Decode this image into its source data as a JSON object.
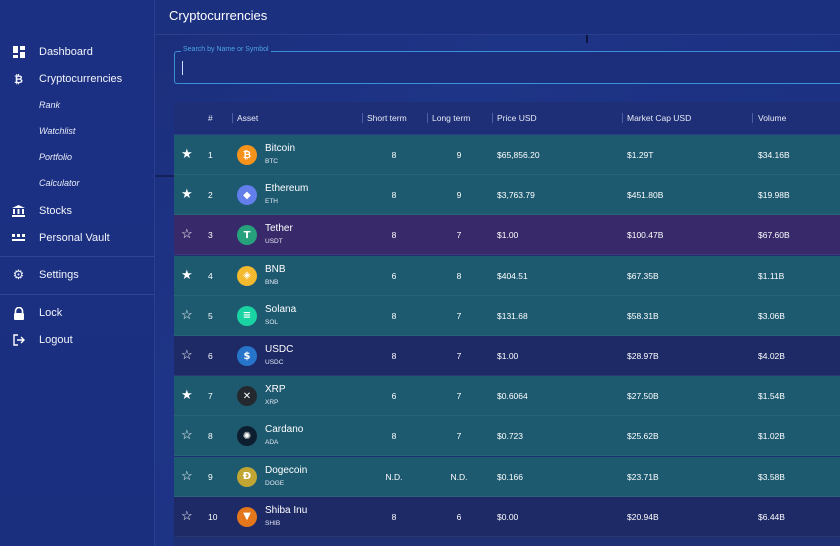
{
  "header": {
    "title": "Cryptocurrencies"
  },
  "sidebar": {
    "items": [
      {
        "label": "Dashboard",
        "icon": "dashboard-icon"
      },
      {
        "label": "Cryptocurrencies",
        "icon": "bitcoin-icon"
      },
      {
        "label": "Stocks",
        "icon": "bank-icon"
      },
      {
        "label": "Personal Vault",
        "icon": "vault-icon"
      },
      {
        "label": "Settings",
        "icon": "gear-icon"
      },
      {
        "label": "Lock",
        "icon": "lock-icon"
      },
      {
        "label": "Logout",
        "icon": "logout-icon"
      }
    ],
    "subitems": [
      "Rank",
      "Watchlist",
      "Portfolio",
      "Calculator"
    ]
  },
  "search": {
    "label": "Search by Name or Symbol",
    "value": ""
  },
  "table": {
    "columns": [
      "#",
      "Asset",
      "Short term",
      "Long term",
      "Price USD",
      "Market Cap USD",
      "Volume"
    ],
    "rows": [
      {
        "starred": true,
        "rank": "1",
        "name": "Bitcoin",
        "symbol": "BTC",
        "short": "8",
        "long": "9",
        "price": "$65,856.20",
        "mcap": "$1.29T",
        "volume": "$34.16B",
        "color": "#f7931a",
        "glyph": "₿",
        "theme": "teal"
      },
      {
        "starred": true,
        "rank": "2",
        "name": "Ethereum",
        "symbol": "ETH",
        "short": "8",
        "long": "9",
        "price": "$3,763.79",
        "mcap": "$451.80B",
        "volume": "$19.98B",
        "color": "#627eea",
        "glyph": "◆",
        "theme": "teal"
      },
      {
        "starred": false,
        "rank": "3",
        "name": "Tether",
        "symbol": "USDT",
        "short": "8",
        "long": "7",
        "price": "$1.00",
        "mcap": "$100.47B",
        "volume": "$67.60B",
        "color": "#26a17b",
        "glyph": "T",
        "theme": "purple"
      },
      {
        "starred": true,
        "rank": "4",
        "name": "BNB",
        "symbol": "BNB",
        "short": "6",
        "long": "8",
        "price": "$404.51",
        "mcap": "$67.35B",
        "volume": "$1.11B",
        "color": "#f3ba2f",
        "glyph": "◈",
        "theme": "teal"
      },
      {
        "starred": false,
        "rank": "5",
        "name": "Solana",
        "symbol": "SOL",
        "short": "8",
        "long": "7",
        "price": "$131.68",
        "mcap": "$58.31B",
        "volume": "$3.06B",
        "color": "#19d3a2",
        "glyph": "≡",
        "theme": "teal"
      },
      {
        "starred": false,
        "rank": "6",
        "name": "USDC",
        "symbol": "USDC",
        "short": "8",
        "long": "7",
        "price": "$1.00",
        "mcap": "$28.97B",
        "volume": "$4.02B",
        "color": "#2775ca",
        "glyph": "$",
        "theme": "navy"
      },
      {
        "starred": true,
        "rank": "7",
        "name": "XRP",
        "symbol": "XRP",
        "short": "6",
        "long": "7",
        "price": "$0.6064",
        "mcap": "$27.50B",
        "volume": "$1.54B",
        "color": "#23292f",
        "glyph": "✕",
        "theme": "teal"
      },
      {
        "starred": false,
        "rank": "8",
        "name": "Cardano",
        "symbol": "ADA",
        "short": "8",
        "long": "7",
        "price": "$0.723",
        "mcap": "$25.62B",
        "volume": "$1.02B",
        "color": "#0d1e30",
        "glyph": "✺",
        "theme": "teal"
      },
      {
        "starred": false,
        "rank": "9",
        "name": "Dogecoin",
        "symbol": "DOGE",
        "short": "N.D.",
        "long": "N.D.",
        "price": "$0.166",
        "mcap": "$23.71B",
        "volume": "$3.58B",
        "color": "#c2a633",
        "glyph": "Ð",
        "theme": "teal"
      },
      {
        "starred": false,
        "rank": "10",
        "name": "Shiba Inu",
        "symbol": "SHIB",
        "short": "8",
        "long": "6",
        "price": "$0.00",
        "mcap": "$20.94B",
        "volume": "$6.44B",
        "color": "#e4761b",
        "glyph": "▼",
        "theme": "navy"
      }
    ]
  }
}
